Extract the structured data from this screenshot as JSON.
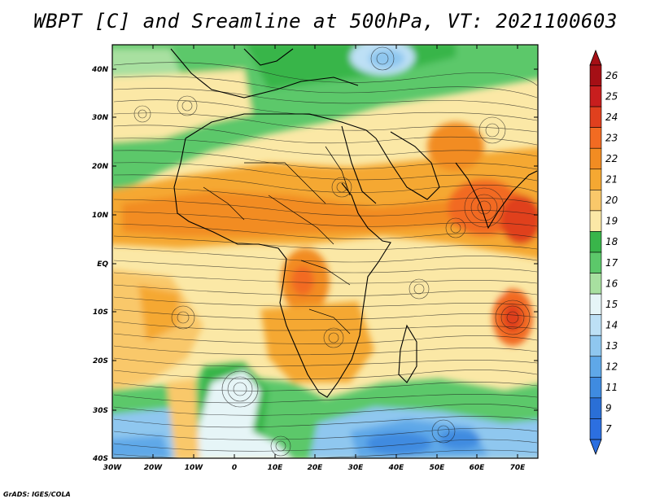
{
  "title": "WBPT [C] and Sreamline at 500hPa, VT: 2021100603",
  "footer": "GrADS: IGES/COLA",
  "lat_labels": [
    "40N",
    "30N",
    "20N",
    "10N",
    "EQ",
    "10S",
    "20S",
    "30S",
    "40S"
  ],
  "lon_labels": [
    "30W",
    "20W",
    "10W",
    "0",
    "10E",
    "20E",
    "30E",
    "40E",
    "50E",
    "60E",
    "70E"
  ],
  "colorbar": {
    "labels": [
      "26",
      "25",
      "24",
      "23",
      "22",
      "21",
      "20",
      "19",
      "18",
      "17",
      "16",
      "15",
      "14",
      "13",
      "12",
      "11",
      "9",
      "7"
    ],
    "colors": [
      "#a50f15",
      "#c81e1e",
      "#e0401e",
      "#f26b22",
      "#f28c22",
      "#f5a832",
      "#f9c86a",
      "#fbe8a6",
      "#39b54a",
      "#5cc86a",
      "#a8e0a0",
      "#e6f5f7",
      "#bde0f5",
      "#8fc7ef",
      "#5fa8e8",
      "#3f8be0",
      "#2a6fd6",
      "#2c6fe0"
    ]
  },
  "chart_data": {
    "type": "heatmap",
    "title": "WBPT [C] and Sreamline at 500hPa, VT: 2021100603",
    "variable": "WBPT [C]",
    "level": "500hPa",
    "valid_time": "2021100603",
    "lon_range": [
      -30,
      75
    ],
    "lat_range": [
      -40,
      45
    ],
    "color_levels": [
      7,
      9,
      11,
      12,
      13,
      14,
      15,
      16,
      17,
      18,
      19,
      20,
      21,
      22,
      23,
      24,
      25,
      26
    ],
    "overlay": "streamlines"
  }
}
